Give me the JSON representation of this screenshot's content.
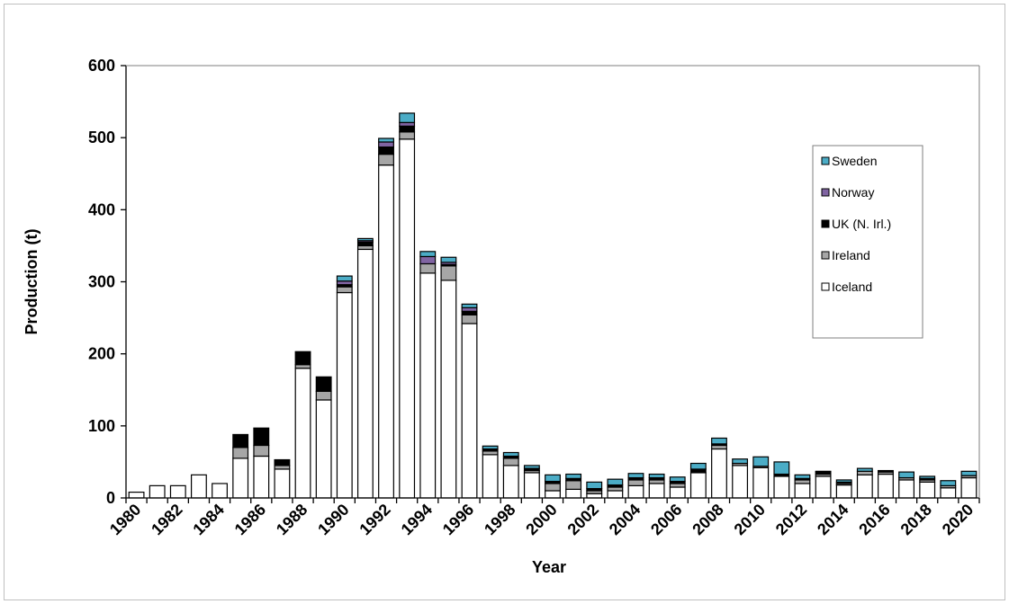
{
  "chart_data": {
    "type": "bar",
    "stacked": true,
    "title": "",
    "xlabel": "Year",
    "ylabel": "Production (t)",
    "ylim": [
      0,
      600
    ],
    "yticks": [
      0,
      100,
      200,
      300,
      400,
      500,
      600
    ],
    "grid": false,
    "legend_position": "right",
    "x": [
      1980,
      1981,
      1982,
      1983,
      1984,
      1985,
      1986,
      1987,
      1988,
      1989,
      1990,
      1991,
      1992,
      1993,
      1994,
      1995,
      1996,
      1997,
      1998,
      1999,
      2000,
      2001,
      2002,
      2003,
      2004,
      2005,
      2006,
      2007,
      2008,
      2009,
      2010,
      2011,
      2012,
      2013,
      2014,
      2015,
      2016,
      2017,
      2018,
      2019,
      2020
    ],
    "xtick_labels": [
      "1980",
      "1982",
      "1984",
      "1986",
      "1988",
      "1990",
      "1992",
      "1994",
      "1996",
      "1998",
      "2000",
      "2002",
      "2004",
      "2006",
      "2008",
      "2010",
      "2012",
      "2014",
      "2016",
      "2018",
      "2020"
    ],
    "series": [
      {
        "name": "Iceland",
        "color": "#ffffff",
        "values": [
          8,
          17,
          17,
          32,
          20,
          55,
          58,
          40,
          180,
          136,
          285,
          345,
          462,
          498,
          312,
          302,
          242,
          60,
          45,
          35,
          10,
          12,
          6,
          10,
          17,
          20,
          15,
          35,
          68,
          45,
          42,
          30,
          20,
          30,
          18,
          32,
          33,
          25,
          22,
          14,
          28
        ]
      },
      {
        "name": "Ireland",
        "color": "#a6a6a6",
        "values": [
          0,
          0,
          0,
          0,
          0,
          15,
          15,
          5,
          5,
          12,
          8,
          5,
          15,
          10,
          13,
          20,
          12,
          5,
          10,
          3,
          10,
          12,
          4,
          5,
          8,
          5,
          5,
          0,
          5,
          3,
          2,
          0,
          5,
          3,
          2,
          5,
          3,
          3,
          3,
          3,
          3
        ]
      },
      {
        "name": "UK (N. Irl.)",
        "color": "#000000",
        "values": [
          0,
          0,
          0,
          0,
          0,
          18,
          24,
          8,
          18,
          20,
          3,
          5,
          10,
          8,
          0,
          2,
          5,
          3,
          3,
          3,
          3,
          3,
          3,
          3,
          3,
          3,
          3,
          5,
          2,
          0,
          0,
          3,
          2,
          3,
          2,
          0,
          2,
          0,
          2,
          0,
          0
        ]
      },
      {
        "name": "Norway",
        "color": "#8064a2",
        "values": [
          0,
          0,
          0,
          0,
          0,
          0,
          0,
          0,
          0,
          0,
          5,
          2,
          7,
          5,
          10,
          3,
          5,
          0,
          0,
          0,
          0,
          0,
          0,
          0,
          0,
          0,
          0,
          0,
          0,
          0,
          0,
          0,
          0,
          0,
          0,
          0,
          0,
          0,
          0,
          0,
          0
        ]
      },
      {
        "name": "Sweden",
        "color": "#4bacc6",
        "values": [
          0,
          0,
          0,
          0,
          0,
          0,
          0,
          0,
          0,
          0,
          7,
          3,
          5,
          13,
          7,
          7,
          5,
          4,
          5,
          4,
          9,
          6,
          9,
          8,
          6,
          5,
          6,
          8,
          8,
          6,
          13,
          17,
          5,
          1,
          3,
          4,
          0,
          8,
          3,
          7,
          6
        ]
      }
    ]
  }
}
